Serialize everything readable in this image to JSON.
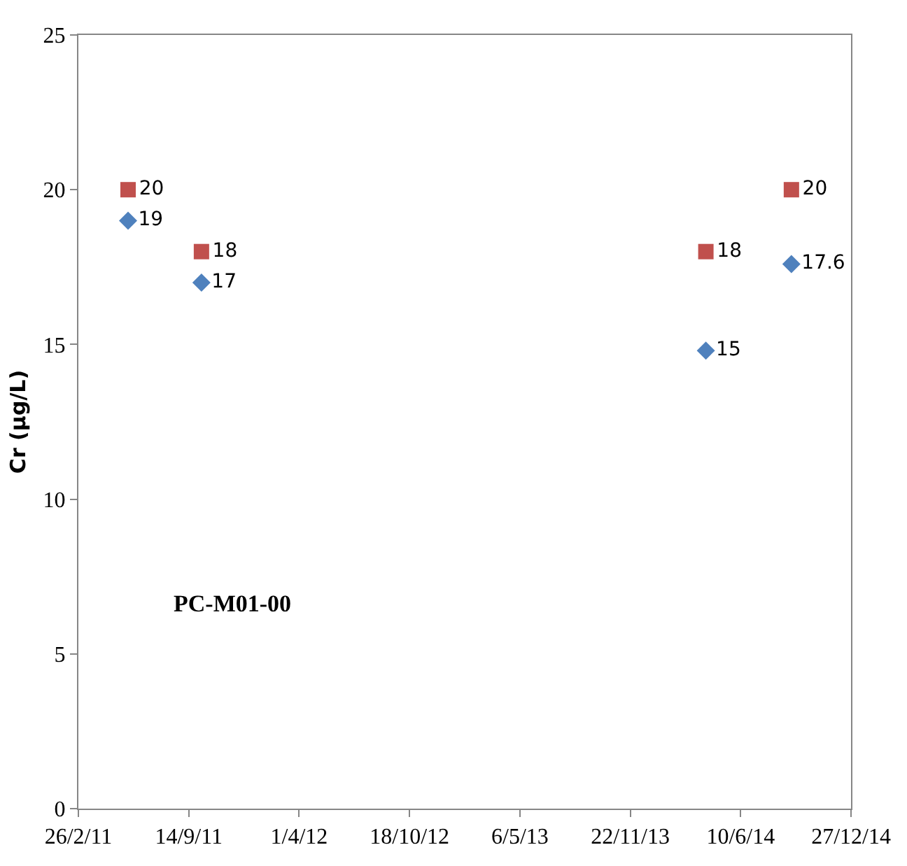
{
  "chart_data": {
    "type": "scatter",
    "ylabel": "Cr (µg/L)",
    "x": [
      "2011-05-27",
      "2011-10-07",
      "2014-04-08",
      "2014-09-10"
    ],
    "series": [
      {
        "color": "#4f81bd",
        "marker": "diamond",
        "values": [
          19,
          17,
          14.8,
          17.6
        ],
        "value_labels": [
          "19",
          "17",
          "15",
          "17.6"
        ]
      },
      {
        "color": "#c0504d",
        "marker": "square",
        "values": [
          20,
          18,
          18,
          20
        ],
        "value_labels": [
          "20",
          "18",
          "18",
          "20"
        ]
      }
    ],
    "xlim": [
      "2011-02-26",
      "2014-12-27"
    ],
    "xticks": [
      {
        "value": "2011-02-26",
        "label": "26/2/11"
      },
      {
        "value": "2011-09-14",
        "label": "14/9/11"
      },
      {
        "value": "2012-04-01",
        "label": "1/4/12"
      },
      {
        "value": "2012-10-18",
        "label": "18/10/12"
      },
      {
        "value": "2013-05-06",
        "label": "6/5/13"
      },
      {
        "value": "2013-11-22",
        "label": "22/11/13"
      },
      {
        "value": "2014-06-10",
        "label": "10/6/14"
      },
      {
        "value": "2014-12-27",
        "label": "27/12/14"
      }
    ],
    "ylim": [
      0,
      25
    ],
    "yticks": [
      0,
      5,
      10,
      15,
      20,
      25
    ],
    "annotations": [
      "PC-M01-00"
    ]
  }
}
